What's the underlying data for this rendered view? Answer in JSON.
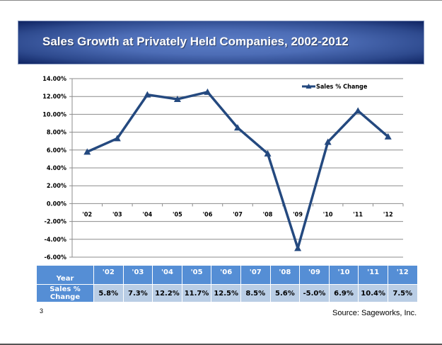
{
  "slide": {
    "title": "Sales Growth at Privately Held Companies, 2002-2012",
    "page_number": "3",
    "source": "Source: Sageworks, Inc."
  },
  "chart_data": {
    "type": "line",
    "title": "",
    "categories": [
      "'02",
      "'03",
      "'04",
      "'05",
      "'06",
      "'07",
      "'08",
      "'09",
      "'10",
      "'11",
      "'12"
    ],
    "series": [
      {
        "name": "Sales % Change",
        "values": [
          5.8,
          7.3,
          12.2,
          11.7,
          12.5,
          8.5,
          5.6,
          -5.0,
          6.9,
          10.4,
          7.5
        ],
        "color": "#24497f",
        "marker": "triangle"
      }
    ],
    "y_ticks": [
      "14.00%",
      "12.00%",
      "10.00%",
      "8.00%",
      "6.00%",
      "4.00%",
      "2.00%",
      "0.00%",
      "-2.00%",
      "-4.00%",
      "-6.00%"
    ],
    "ylim": [
      -6,
      14
    ],
    "grid": true,
    "legend": "top-right"
  },
  "table": {
    "row_headers": [
      "Year",
      "Sales % Change"
    ],
    "years": [
      "'02",
      "'03",
      "'04",
      "'05",
      "'06",
      "'07",
      "'08",
      "'09",
      "'10",
      "'11",
      "'12"
    ],
    "values": [
      "5.8%",
      "7.3%",
      "12.2%",
      "11.7%",
      "12.5%",
      "8.5%",
      "5.6%",
      "-5.0%",
      "6.9%",
      "10.4%",
      "7.5%"
    ]
  }
}
